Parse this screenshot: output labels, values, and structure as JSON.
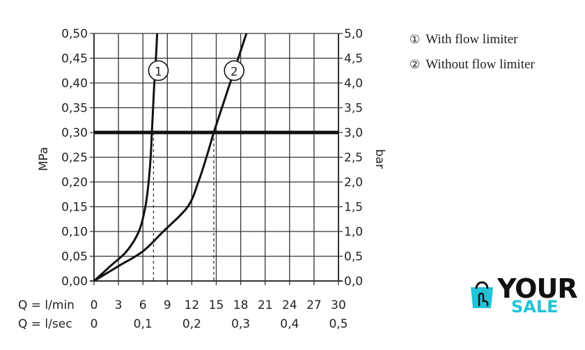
{
  "chart_data": {
    "type": "line",
    "y_left": {
      "label": "MPa",
      "ticks": [
        "0,00",
        "0,05",
        "0,10",
        "0,15",
        "0,20",
        "0,25",
        "0,30",
        "0,35",
        "0,40",
        "0,45",
        "0,50"
      ],
      "range": [
        0,
        0.5
      ]
    },
    "y_right": {
      "label": "bar",
      "ticks": [
        "0,0",
        "0,5",
        "1,0",
        "1,5",
        "2,0",
        "2,5",
        "3,0",
        "3,5",
        "4,0",
        "4,5",
        "5,0"
      ],
      "range": [
        0,
        5
      ]
    },
    "x_primary": {
      "label": "Q = l/min",
      "ticks": [
        "0",
        "3",
        "6",
        "9",
        "12",
        "15",
        "18",
        "21",
        "24",
        "27",
        "30"
      ],
      "range": [
        0,
        30
      ]
    },
    "x_secondary": {
      "label": "Q = l/sec",
      "ticks": [
        "0",
        "0,1",
        "0,2",
        "0,3",
        "0,4",
        "0,5"
      ],
      "range": [
        0,
        0.5
      ]
    },
    "grid": true,
    "reference_line": {
      "y": 0.3
    },
    "series": [
      {
        "name": "1",
        "points": [
          [
            0,
            0
          ],
          [
            2,
            0.03
          ],
          [
            4,
            0.06
          ],
          [
            5.5,
            0.1
          ],
          [
            6.3,
            0.15
          ],
          [
            6.7,
            0.2
          ],
          [
            6.95,
            0.25
          ],
          [
            7.1,
            0.3
          ],
          [
            7.25,
            0.35
          ],
          [
            7.4,
            0.4
          ],
          [
            7.6,
            0.45
          ],
          [
            7.75,
            0.5
          ]
        ],
        "operating_flow": 7.3
      },
      {
        "name": "2",
        "points": [
          [
            0,
            0
          ],
          [
            3,
            0.03
          ],
          [
            6,
            0.06
          ],
          [
            8.5,
            0.1
          ],
          [
            11.5,
            0.15
          ],
          [
            12.8,
            0.2
          ],
          [
            13.8,
            0.25
          ],
          [
            14.7,
            0.3
          ],
          [
            15.7,
            0.35
          ],
          [
            16.7,
            0.4
          ],
          [
            17.7,
            0.45
          ],
          [
            18.7,
            0.5
          ]
        ],
        "operating_flow": 14.7
      }
    ]
  },
  "legend": [
    {
      "marker": "①",
      "label": "With flow limiter"
    },
    {
      "marker": "②",
      "label": "Without flow limiter"
    }
  ],
  "curve_markers": [
    "1",
    "2"
  ],
  "logo": {
    "word1": "YOUR",
    "word2": "SALE",
    "color_primary": "#111111",
    "color_accent": "#22c3d6"
  }
}
